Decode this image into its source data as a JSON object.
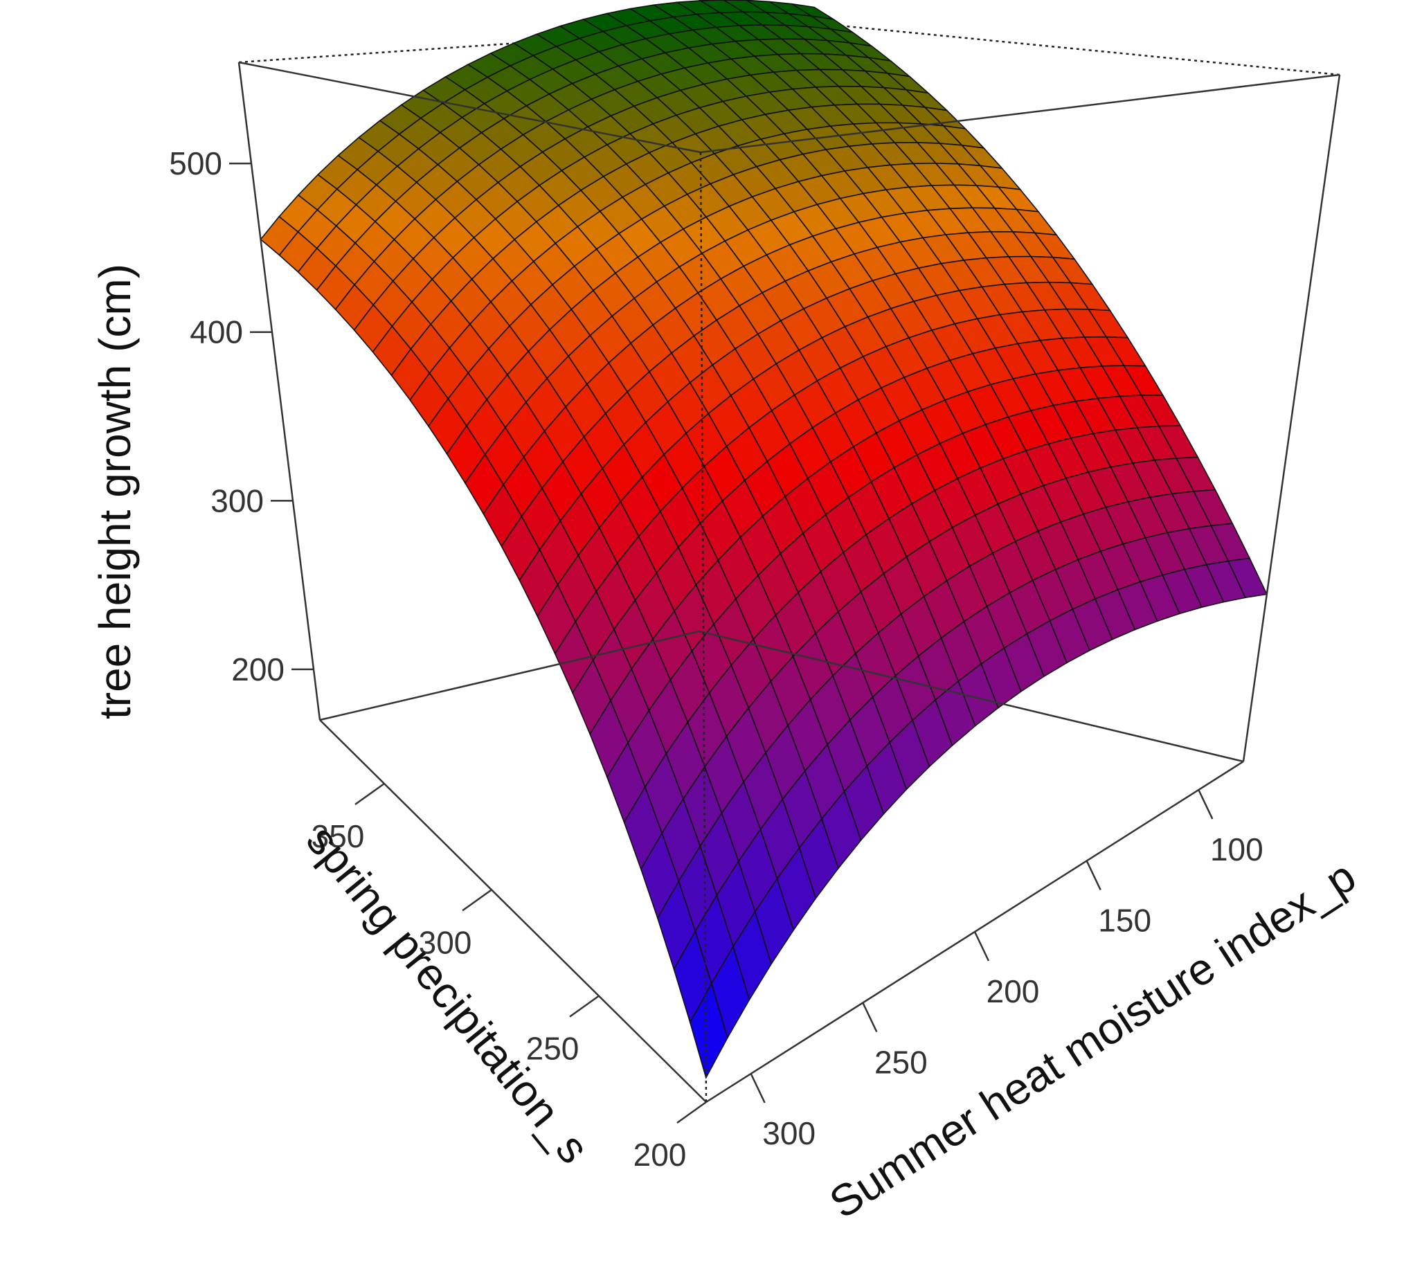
{
  "chart_data": {
    "type": "surface3d",
    "zlabel": "tree height growth (cm)",
    "xlabel": "spring precipitation_s",
    "ylabel": "Summer heat moisture index_p",
    "x_ticks": [
      "200",
      "250",
      "300",
      "350"
    ],
    "y_ticks": [
      "100",
      "150",
      "200",
      "250",
      "300"
    ],
    "z_ticks": [
      "200",
      "300",
      "400",
      "500"
    ],
    "xlim": [
      200,
      380
    ],
    "ylim": [
      80,
      320
    ],
    "zlim": [
      170,
      560
    ],
    "grid_steps": 25,
    "corner_values": {
      "x200_y320": 180,
      "x380_y320": 455,
      "x200_y80": 265,
      "x380_y80": 570
    },
    "surface_samples": [
      {
        "x": 200,
        "y": 320,
        "z": 180
      },
      {
        "x": 380,
        "y": 320,
        "z": 455
      },
      {
        "x": 200,
        "y": 80,
        "z": 265
      },
      {
        "x": 380,
        "y": 80,
        "z": 570
      },
      {
        "x": 290,
        "y": 200,
        "z": 430
      }
    ],
    "color_scale": [
      "#0000ff",
      "#7a0a8c",
      "#ee0000",
      "#e07a00",
      "#005800"
    ],
    "box": true,
    "box_hidden_edges": "dotted"
  }
}
